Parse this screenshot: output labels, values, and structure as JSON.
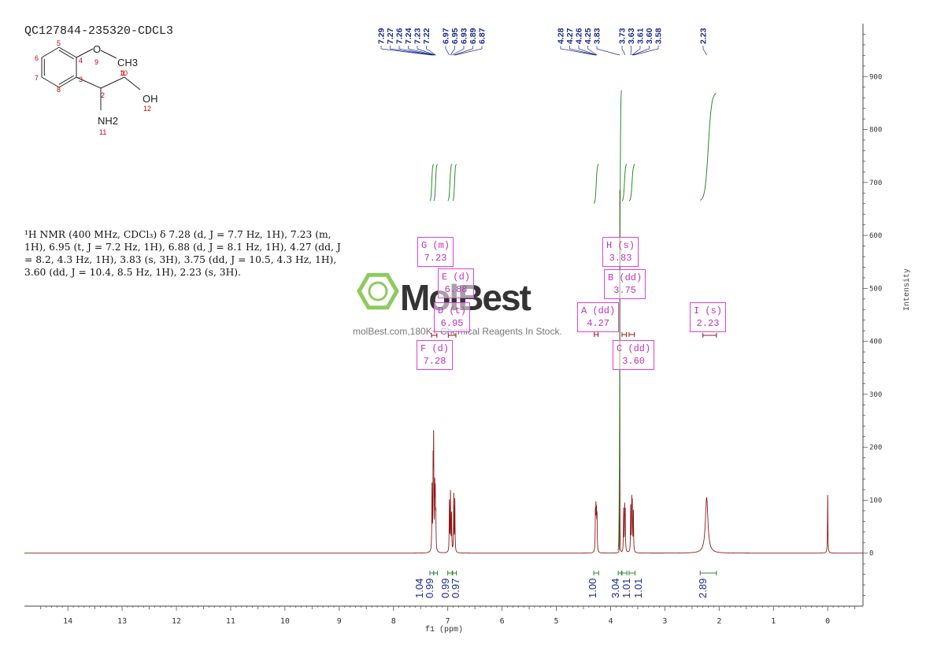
{
  "header": {
    "sample_id": "QC127844-235320-CDCL3"
  },
  "structure": {
    "atoms": [
      {
        "label": "O",
        "num": "9"
      },
      {
        "label": "CH3",
        "num": "10"
      },
      {
        "label": "OH",
        "num": "12"
      },
      {
        "label": "NH2",
        "num": "11"
      }
    ],
    "ring_numbers": [
      "5",
      "4",
      "6",
      "3",
      "7",
      "8",
      "2",
      "1"
    ]
  },
  "nmr_description": {
    "prefix": "1H NMR (400 MHz, CDCl3) δ ",
    "text": "¹H NMR (400 MHz, CDCl₃) δ 7.28 (d, J = 7.7 Hz, 1H), 7.23 (m, 1H), 6.95 (t, J = 7.2 Hz, 1H), 6.88 (d, J = 8.1 Hz, 1H), 4.27 (dd, J = 8.2, 4.3 Hz, 1H), 3.83 (s, 3H), 3.75 (dd, J = 10.5, 4.3 Hz, 1H), 3.60 (dd, J = 10.4, 8.5 Hz, 1H), 2.23 (s, 3H)."
  },
  "watermark": {
    "brand": "MolBest",
    "url_text": "molBest.com,180K+ Chemical Reagents In Stock."
  },
  "multiplet_boxes": [
    {
      "id": "G",
      "label": "G (m)",
      "value": "7.23"
    },
    {
      "id": "E",
      "label": "E (d)",
      "value": "6.88"
    },
    {
      "id": "D",
      "label": "D (t)",
      "value": "6.95"
    },
    {
      "id": "F",
      "label": "F (d)",
      "value": "7.28"
    },
    {
      "id": "H",
      "label": "H (s)",
      "value": "3.83"
    },
    {
      "id": "B",
      "label": "B (dd)",
      "value": "3.75"
    },
    {
      "id": "A",
      "label": "A (dd)",
      "value": "4.27"
    },
    {
      "id": "C",
      "label": "C (dd)",
      "value": "3.60"
    },
    {
      "id": "I",
      "label": "I (s)",
      "value": "2.23"
    }
  ],
  "chart_data": {
    "type": "line",
    "title": "",
    "xlabel": "f1 (ppm)",
    "ylabel": "Intensity",
    "xlim": [
      14.8,
      -0.65
    ],
    "ylim": [
      -100,
      1000
    ],
    "x_ticks": [
      14,
      13,
      12,
      11,
      10,
      9,
      8,
      7,
      6,
      5,
      4,
      3,
      2,
      1,
      0
    ],
    "y_ticks": [
      0,
      100,
      200,
      300,
      400,
      500,
      600,
      700,
      800,
      900
    ],
    "peak_labels": [
      "7.29",
      "7.27",
      "7.26",
      "7.24",
      "7.23",
      "7.22",
      "6.97",
      "6.95",
      "6.93",
      "6.89",
      "6.87",
      "4.28",
      "4.27",
      "4.26",
      "4.25",
      "3.83",
      "3.73",
      "3.63",
      "3.61",
      "3.60",
      "3.58",
      "2.23"
    ],
    "peaks": [
      {
        "ppm": 7.29,
        "h": 120
      },
      {
        "ppm": 7.27,
        "h": 150
      },
      {
        "ppm": 7.26,
        "h": 195
      },
      {
        "ppm": 7.24,
        "h": 110
      },
      {
        "ppm": 7.23,
        "h": 95
      },
      {
        "ppm": 7.22,
        "h": 60
      },
      {
        "ppm": 6.97,
        "h": 95
      },
      {
        "ppm": 6.95,
        "h": 110
      },
      {
        "ppm": 6.93,
        "h": 70
      },
      {
        "ppm": 6.89,
        "h": 108
      },
      {
        "ppm": 6.87,
        "h": 98
      },
      {
        "ppm": 4.28,
        "h": 70
      },
      {
        "ppm": 4.27,
        "h": 72
      },
      {
        "ppm": 4.26,
        "h": 65
      },
      {
        "ppm": 4.25,
        "h": 62
      },
      {
        "ppm": 3.83,
        "h": 760
      },
      {
        "ppm": 3.76,
        "h": 80
      },
      {
        "ppm": 3.74,
        "h": 78
      },
      {
        "ppm": 3.73,
        "h": 70
      },
      {
        "ppm": 3.63,
        "h": 85
      },
      {
        "ppm": 3.61,
        "h": 90
      },
      {
        "ppm": 3.6,
        "h": 82
      },
      {
        "ppm": 3.58,
        "h": 75
      },
      {
        "ppm": 2.23,
        "h": 105,
        "broad": true
      },
      {
        "ppm": 0.0,
        "h": 110
      }
    ],
    "integrals": [
      {
        "from": 7.33,
        "to": 7.26,
        "value": "1.04",
        "y0": 665,
        "y1": 735
      },
      {
        "from": 7.26,
        "to": 7.19,
        "value": "0.99",
        "y0": 665,
        "y1": 735
      },
      {
        "from": 7.0,
        "to": 6.92,
        "value": "0.99",
        "y0": 665,
        "y1": 735
      },
      {
        "from": 6.91,
        "to": 6.84,
        "value": "0.97",
        "y0": 665,
        "y1": 735
      },
      {
        "from": 4.31,
        "to": 4.22,
        "value": "1.00",
        "y0": 660,
        "y1": 735
      },
      {
        "from": 3.86,
        "to": 3.8,
        "value": "3.04",
        "y0": 0,
        "y1": 880
      },
      {
        "from": 3.79,
        "to": 3.7,
        "value": "1.01",
        "y0": 665,
        "y1": 735
      },
      {
        "from": 3.66,
        "to": 3.55,
        "value": "1.01",
        "y0": 665,
        "y1": 735
      },
      {
        "from": 2.35,
        "to": 2.05,
        "value": "2.89",
        "y0": 665,
        "y1": 870
      }
    ]
  }
}
